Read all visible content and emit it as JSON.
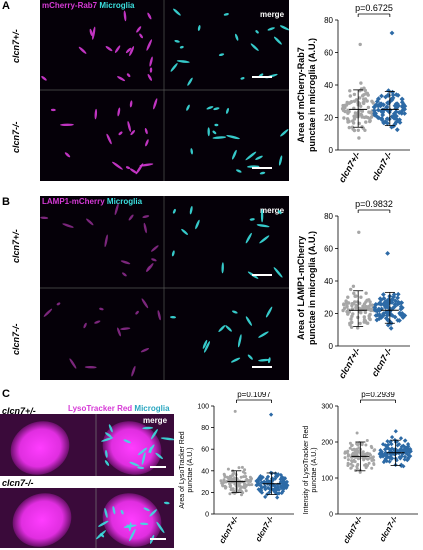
{
  "panels": {
    "A": {
      "letter": "A",
      "channel_1": "mCherry-Rab7",
      "channel_2": "Microglia",
      "merge_label": "merge",
      "row_labels": [
        "clcn7+/-",
        "clcn7-/-"
      ],
      "chart": {
        "p_value": "p=0.6725",
        "ylabel_line1": "Area of mCherry-Rab7",
        "ylabel_line2": "punctae in microglia (A.U.)",
        "yticks": [
          "0",
          "20",
          "40",
          "60",
          "80"
        ],
        "xlabels": [
          "clcn7+/-",
          "clcn7-/-"
        ]
      }
    },
    "B": {
      "letter": "B",
      "channel_1": "LAMP1-mCherry",
      "channel_2": "Microglia",
      "merge_label": "merge",
      "row_labels": [
        "clcn7+/-",
        "clcn7-/-"
      ],
      "chart": {
        "p_value": "p=0.9832",
        "ylabel_line1": "Area of LAMP1-mCherry",
        "ylabel_line2": "punctae in microglia (A.U.)",
        "yticks": [
          "0",
          "20",
          "40",
          "60",
          "80"
        ],
        "xlabels": [
          "clcn7+/-",
          "clcn7-/-"
        ]
      }
    },
    "C": {
      "letter": "C",
      "channel_1": "LysoTracker Red",
      "channel_2": "Microglia",
      "merge_label": "merge",
      "row_labels": [
        "clcn7+/-",
        "clcn7-/-"
      ],
      "chart1": {
        "p_value": "p=0.1097",
        "ylabel_line1": "Area of LysoTracker Red",
        "ylabel_line2": "punctae (A.U.)",
        "yticks": [
          "0",
          "20",
          "40",
          "60",
          "80",
          "100"
        ],
        "xlabels": [
          "clcn7+/-",
          "clcn7-/-"
        ]
      },
      "chart2": {
        "p_value": "p=0.2939",
        "ylabel_line1": "Intensity of LysoTracker Red",
        "ylabel_line2": "punctae (A.U.)",
        "yticks": [
          "0",
          "100",
          "200",
          "300"
        ],
        "xlabels": [
          "clcn7+/-",
          "clcn7-/-"
        ]
      }
    }
  },
  "chart_data": [
    {
      "type": "scatter",
      "panel": "A",
      "categories": [
        "clcn7+/-",
        "clcn7-/-"
      ],
      "ylim": [
        0,
        80
      ],
      "series": [
        {
          "values_summary": {
            "mean": 25,
            "sd_low": 14,
            "sd_high": 37,
            "max": 65
          }
        },
        {
          "values_summary": {
            "mean": 25,
            "sd_low": 15,
            "sd_high": 36,
            "max": 72
          }
        }
      ],
      "p_value": "p=0.6725"
    },
    {
      "type": "scatter",
      "panel": "B",
      "categories": [
        "clcn7+/-",
        "clcn7-/-"
      ],
      "ylim": [
        0,
        80
      ],
      "series": [
        {
          "values_summary": {
            "mean": 22,
            "sd_low": 12,
            "sd_high": 34,
            "max": 70
          }
        },
        {
          "values_summary": {
            "mean": 22,
            "sd_low": 14,
            "sd_high": 33,
            "max": 57
          }
        }
      ],
      "p_value": "p=0.9832"
    },
    {
      "type": "scatter",
      "panel": "C-area",
      "categories": [
        "clcn7+/-",
        "clcn7-/-"
      ],
      "ylim": [
        0,
        100
      ],
      "series": [
        {
          "values_summary": {
            "mean": 30,
            "sd_low": 20,
            "sd_high": 40,
            "max": 95
          }
        },
        {
          "values_summary": {
            "mean": 28,
            "sd_low": 18,
            "sd_high": 38,
            "max": 92
          }
        }
      ],
      "p_value": "p=0.1097"
    },
    {
      "type": "scatter",
      "panel": "C-intensity",
      "categories": [
        "clcn7+/-",
        "clcn7-/-"
      ],
      "ylim": [
        0,
        300
      ],
      "series": [
        {
          "values_summary": {
            "mean": 160,
            "sd_low": 120,
            "sd_high": 200,
            "max": 225
          }
        },
        {
          "values_summary": {
            "mean": 170,
            "sd_low": 135,
            "sd_high": 205,
            "max": 230
          }
        }
      ],
      "p_value": "p=0.2939"
    }
  ],
  "colors": {
    "het_points": "#a6a6a6",
    "hom_points": "#2d6aa6",
    "magenta": "#d63ad6",
    "cyan": "#3ce0e0"
  }
}
